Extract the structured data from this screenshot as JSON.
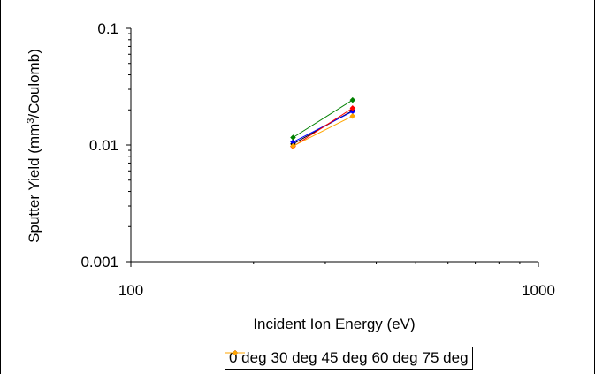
{
  "chart_data": {
    "type": "line",
    "xlabel": "Incident Ion Energy (eV)",
    "ylabel_parts": [
      "Sputter Yield (mm",
      "3",
      "/Coulomb)"
    ],
    "x_scale": "log",
    "y_scale": "log",
    "xlim": [
      100,
      1000
    ],
    "ylim": [
      0.001,
      0.1
    ],
    "x_ticks": [
      {
        "value": 100,
        "label": "100"
      },
      {
        "value": 1000,
        "label": "1000"
      }
    ],
    "y_ticks": [
      {
        "value": 0.001,
        "label": "0.001"
      },
      {
        "value": 0.01,
        "label": "0.01"
      },
      {
        "value": 0.1,
        "label": "0.1"
      }
    ],
    "grid": false,
    "legend_position": "bottom",
    "series": [
      {
        "name": "0 deg",
        "color": "#000000",
        "x": [
          250,
          350
        ],
        "y": [
          0.0102,
          0.0197
        ]
      },
      {
        "name": "30 deg",
        "color": "#0000ff",
        "x": [
          250,
          350
        ],
        "y": [
          0.0106,
          0.0194
        ]
      },
      {
        "name": "45 deg",
        "color": "#008000",
        "x": [
          250,
          350
        ],
        "y": [
          0.0116,
          0.0243
        ]
      },
      {
        "name": "60 deg",
        "color": "#ff0000",
        "x": [
          250,
          350
        ],
        "y": [
          0.0097,
          0.0207
        ]
      },
      {
        "name": "75 deg",
        "color": "#ffa500",
        "x": [
          250,
          350
        ],
        "y": [
          0.0098,
          0.0177
        ]
      }
    ]
  }
}
